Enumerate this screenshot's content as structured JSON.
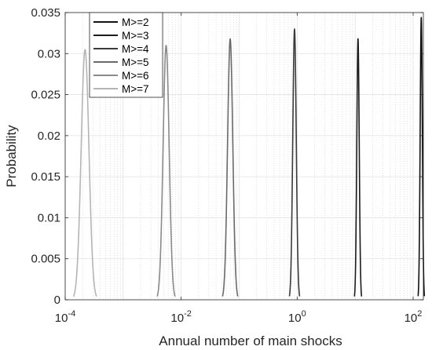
{
  "chart_data": {
    "type": "line",
    "title": "",
    "xlabel": "Annual number of main shocks",
    "ylabel": "Probability",
    "xscale": "log",
    "xlim": [
      0.0001,
      150
    ],
    "ylim": [
      0,
      0.035
    ],
    "x_tick_labels": [
      {
        "base": "10",
        "exp": "-4"
      },
      {
        "base": "10",
        "exp": "-2"
      },
      {
        "base": "10",
        "exp": "0"
      },
      {
        "base": "10",
        "exp": "2"
      }
    ],
    "y_ticks": [
      0,
      0.005,
      0.01,
      0.015,
      0.02,
      0.025,
      0.03,
      0.035
    ],
    "y_tick_labels": [
      "0",
      "0.005",
      "0.01",
      "0.015",
      "0.02",
      "0.025",
      "0.03",
      "0.035"
    ],
    "grid": true,
    "legend_position": "top-left",
    "series": [
      {
        "name": "M>=2",
        "color": "#111111",
        "peak_x": 138,
        "peak_y": 0.0344,
        "width_decades": 0.025
      },
      {
        "name": "M>=3",
        "color": "#1c1c1c",
        "peak_x": 11.2,
        "peak_y": 0.0318,
        "width_decades": 0.028
      },
      {
        "name": "M>=4",
        "color": "#3a3a3a",
        "peak_x": 0.9,
        "peak_y": 0.033,
        "width_decades": 0.04
      },
      {
        "name": "M>=5",
        "color": "#6a6a6a",
        "peak_x": 0.07,
        "peak_y": 0.0318,
        "width_decades": 0.06
      },
      {
        "name": "M>=6",
        "color": "#8a8a8a",
        "peak_x": 0.0055,
        "peak_y": 0.031,
        "width_decades": 0.07
      },
      {
        "name": "M>=7",
        "color": "#b5b5b5",
        "peak_x": 0.00022,
        "peak_y": 0.0305,
        "width_decades": 0.09
      }
    ]
  }
}
